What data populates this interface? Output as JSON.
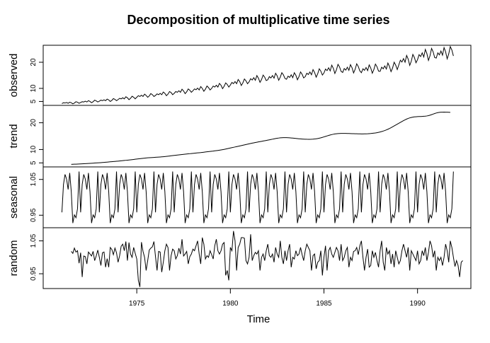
{
  "chart_data": {
    "type": "line",
    "title": "Decomposition of multiplicative time series",
    "xlabel": "Time",
    "x_ticks": [
      1975,
      1980,
      1985,
      1990
    ],
    "xlim": [
      1970.0,
      1992.85
    ],
    "start": 1971.0,
    "frequency": 12,
    "line_color": "#000000",
    "grid": false,
    "panels": [
      {
        "name": "observed",
        "ylabel": "observed",
        "ylim": [
          3.5,
          26.5
        ],
        "y_ticks": [
          5,
          10,
          20
        ],
        "values": [
          4.2,
          4.5,
          4.4,
          4.6,
          4.3,
          4.7,
          4.5,
          4.1,
          4.4,
          4.9,
          4.7,
          4.3,
          4.6,
          4.9,
          4.8,
          5.1,
          4.8,
          5.3,
          5.0,
          4.5,
          4.9,
          5.5,
          5.2,
          4.8,
          5.1,
          5.5,
          5.3,
          5.6,
          5.3,
          5.9,
          5.6,
          5.0,
          5.4,
          6.1,
          5.8,
          5.3,
          5.7,
          6.2,
          6.0,
          6.4,
          6.0,
          6.8,
          6.4,
          5.7,
          6.2,
          7.0,
          6.6,
          6.0,
          6.6,
          7.2,
          6.9,
          7.4,
          6.9,
          7.8,
          7.3,
          6.6,
          7.1,
          8.0,
          7.6,
          6.9,
          7.3,
          7.9,
          7.6,
          8.1,
          7.6,
          8.6,
          8.1,
          7.2,
          7.8,
          8.8,
          8.4,
          7.6,
          8.1,
          8.8,
          8.5,
          9.1,
          8.5,
          9.7,
          9.0,
          8.0,
          8.7,
          9.8,
          9.3,
          8.5,
          9.1,
          9.8,
          9.5,
          10.1,
          9.4,
          10.7,
          10.0,
          8.9,
          9.7,
          10.9,
          10.3,
          9.4,
          10.0,
          10.9,
          10.5,
          11.2,
          10.5,
          11.9,
          11.2,
          9.9,
          10.8,
          12.1,
          11.5,
          10.5,
          11.3,
          12.3,
          11.8,
          12.6,
          11.8,
          13.4,
          12.6,
          11.1,
          12.1,
          13.6,
          12.9,
          11.8,
          12.5,
          13.7,
          13.2,
          14.1,
          13.1,
          14.9,
          13.9,
          12.3,
          13.4,
          15.1,
          14.3,
          13.0,
          13.3,
          14.5,
          14.0,
          14.9,
          13.9,
          15.8,
          14.8,
          13.1,
          14.3,
          16.0,
          15.2,
          13.8,
          13.5,
          14.7,
          14.2,
          15.2,
          14.1,
          16.0,
          15.0,
          13.3,
          14.5,
          16.3,
          15.4,
          14.0,
          14.5,
          15.8,
          15.3,
          16.3,
          15.2,
          17.2,
          16.1,
          14.3,
          15.6,
          17.5,
          16.6,
          15.1,
          15.9,
          17.4,
          16.8,
          17.9,
          16.7,
          18.9,
          17.7,
          15.7,
          17.1,
          19.2,
          18.2,
          16.5,
          16.1,
          17.6,
          17.0,
          18.1,
          16.9,
          19.1,
          17.9,
          15.9,
          17.3,
          19.4,
          18.4,
          16.7,
          16.0,
          17.5,
          16.9,
          18.0,
          16.8,
          19.0,
          17.8,
          15.8,
          17.2,
          19.3,
          18.3,
          16.6,
          16.5,
          18.1,
          17.5,
          18.6,
          17.4,
          19.7,
          18.4,
          16.4,
          17.8,
          20.0,
          18.9,
          17.2,
          19.0,
          20.8,
          20.1,
          21.4,
          20.0,
          22.6,
          21.2,
          18.8,
          20.4,
          23.0,
          21.8,
          19.8,
          21.0,
          22.9,
          22.2,
          23.6,
          22.0,
          24.9,
          23.3,
          20.7,
          22.5,
          25.3,
          24.0,
          21.8,
          21.6,
          23.6,
          22.8,
          24.3,
          22.7,
          25.6,
          24.0,
          21.3,
          23.2,
          26.0,
          24.7,
          22.4
        ]
      },
      {
        "name": "trend",
        "ylabel": "trend",
        "ylim": [
          3.5,
          26.5
        ],
        "y_ticks": [
          5,
          10,
          20
        ],
        "values": [
          null,
          null,
          null,
          null,
          null,
          null,
          4.45,
          4.48,
          4.51,
          4.54,
          4.57,
          4.6,
          4.63,
          4.66,
          4.69,
          4.72,
          4.75,
          4.78,
          4.82,
          4.86,
          4.9,
          4.94,
          4.98,
          5.02,
          5.06,
          5.1,
          5.15,
          5.2,
          5.25,
          5.3,
          5.35,
          5.4,
          5.45,
          5.5,
          5.55,
          5.6,
          5.66,
          5.72,
          5.78,
          5.84,
          5.9,
          5.96,
          6.02,
          6.08,
          6.15,
          6.22,
          6.29,
          6.36,
          6.43,
          6.5,
          6.57,
          6.64,
          6.71,
          6.78,
          6.84,
          6.89,
          6.93,
          6.97,
          7.01,
          7.05,
          7.09,
          7.13,
          7.17,
          7.21,
          7.26,
          7.31,
          7.37,
          7.44,
          7.51,
          7.58,
          7.65,
          7.72,
          7.79,
          7.86,
          7.93,
          8.0,
          8.07,
          8.14,
          8.2,
          8.26,
          8.32,
          8.38,
          8.44,
          8.5,
          8.56,
          8.62,
          8.68,
          8.74,
          8.8,
          8.86,
          8.93,
          9.0,
          9.07,
          9.14,
          9.21,
          9.28,
          9.35,
          9.42,
          9.5,
          9.58,
          9.66,
          9.75,
          9.84,
          9.94,
          10.05,
          10.17,
          10.3,
          10.43,
          10.56,
          10.69,
          10.82,
          10.95,
          11.08,
          11.21,
          11.34,
          11.47,
          11.6,
          11.73,
          11.86,
          11.99,
          12.12,
          12.25,
          12.38,
          12.5,
          12.62,
          12.73,
          12.84,
          12.95,
          13.06,
          13.17,
          13.28,
          13.39,
          13.5,
          13.62,
          13.74,
          13.86,
          13.98,
          14.1,
          14.2,
          14.29,
          14.36,
          14.41,
          14.44,
          14.45,
          14.44,
          14.41,
          14.37,
          14.32,
          14.26,
          14.2,
          14.14,
          14.08,
          14.02,
          13.97,
          13.92,
          13.88,
          13.85,
          13.83,
          13.82,
          13.82,
          13.84,
          13.88,
          13.94,
          14.02,
          14.12,
          14.24,
          14.38,
          14.54,
          14.72,
          14.9,
          15.08,
          15.26,
          15.43,
          15.58,
          15.71,
          15.82,
          15.9,
          15.96,
          16.0,
          16.02,
          16.03,
          16.03,
          16.02,
          16.0,
          15.98,
          15.96,
          15.94,
          15.92,
          15.9,
          15.88,
          15.86,
          15.85,
          15.84,
          15.84,
          15.85,
          15.87,
          15.9,
          15.94,
          15.99,
          16.05,
          16.12,
          16.2,
          16.3,
          16.42,
          16.56,
          16.72,
          16.9,
          17.1,
          17.33,
          17.58,
          17.86,
          18.16,
          18.48,
          18.81,
          19.14,
          19.47,
          19.8,
          20.13,
          20.46,
          20.79,
          21.1,
          21.38,
          21.62,
          21.82,
          21.98,
          22.1,
          22.19,
          22.25,
          22.29,
          22.32,
          22.35,
          22.38,
          22.42,
          22.47,
          22.55,
          22.67,
          22.83,
          23.03,
          23.25,
          23.46,
          23.64,
          23.78,
          23.88,
          23.94,
          23.97,
          23.98,
          23.97,
          23.95,
          23.92,
          23.9,
          null,
          null,
          null,
          null,
          null,
          null
        ]
      },
      {
        "name": "seasonal",
        "ylabel": "seasonal",
        "ylim": [
          0.915,
          1.085
        ],
        "y_ticks": [
          0.95,
          1.05
        ],
        "pattern": [
          0.958,
          1.036,
          1.064,
          1.051,
          1.022,
          1.068,
          1.016,
          0.928,
          0.951,
          0.943,
          0.968,
          1.072
        ]
      },
      {
        "name": "random",
        "ylabel": "random",
        "ylim": [
          0.905,
          1.09
        ],
        "y_ticks": [
          0.95,
          1.05
        ],
        "values": [
          null,
          null,
          null,
          null,
          null,
          null,
          1.018,
          1.012,
          1.028,
          1.016,
          1.02,
          0.982,
          1.014,
          0.94,
          1.004,
          1.002,
          0.98,
          1.016,
          1.01,
          1.004,
          1.018,
          0.99,
          1.004,
          1.022,
          1.0,
          0.975,
          1.014,
          1.016,
          0.97,
          0.996,
          0.97,
          1.03,
          1.024,
          1.008,
          1.028,
          1.014,
          0.985,
          1.005,
          1.034,
          1.04,
          1.02,
          1.048,
          0.99,
          1.045,
          1.01,
          1.0,
          1.03,
          1.012,
          0.995,
          0.93,
          0.91,
          1.046,
          1.018,
          1.0,
          0.96,
          0.99,
          1.022,
          1.028,
          1.032,
          1.048,
          1.002,
          0.96,
          1.018,
          1.016,
          0.955,
          0.985,
          1.02,
          1.04,
          1.03,
          0.96,
          1.005,
          1.025,
          1.02,
          0.995,
          1.005,
          1.028,
          1.01,
          1.055,
          1.004,
          1.01,
          1.018,
          0.98,
          1.002,
          1.01,
          1.025,
          1.02,
          1.035,
          1.05,
          1.01,
          0.98,
          1.06,
          1.04,
          0.995,
          1.005,
          1.0,
          1.02,
          1.008,
          0.995,
          1.035,
          1.055,
          1.02,
          1.01,
          1.02,
          1.04,
          1.045,
          0.945,
          0.96,
          0.93,
          1.03,
          1.02,
          1.08,
          1.05,
          0.96,
          1.03,
          1.04,
          1.06,
          1.06,
          1.058,
          0.99,
          0.98,
          1.0,
          1.07,
          0.99,
          1.005,
          1.015,
          1.01,
          1.02,
          0.96,
          1.0,
          1.01,
          0.99,
          1.02,
          1.04,
          1.005,
          1.0,
          1.01,
          0.985,
          1.03,
          1.01,
          1.0,
          1.05,
          1.0,
          0.98,
          1.02,
          0.99,
          1.02,
          1.04,
          0.97,
          1.0,
          0.995,
          1.02,
          1.005,
          1.01,
          1.03,
          1.008,
          0.99,
          1.02,
          1.04,
          1.03,
          1.02,
          0.96,
          1.005,
          1.01,
          0.965,
          0.985,
          0.99,
          1.02,
          0.945,
          1.0,
          1.035,
          0.96,
          1.02,
          1.03,
          1.01,
          1.0,
          1.015,
          1.03,
          1.02,
          0.99,
          1.04,
          0.99,
          1.0,
          1.02,
          1.03,
          0.97,
          1.0,
          0.99,
          1.018,
          1.02,
          1.03,
          1.008,
          1.035,
          1.05,
          1.0,
          0.96,
          1.0,
          1.025,
          0.97,
          0.975,
          1.02,
          1.0,
          1.015,
          0.99,
          0.97,
          1.02,
          1.05,
          0.985,
          0.96,
          1.03,
          1.01,
          1.02,
          0.98,
          1.01,
          0.97,
          1.02,
          1.0,
          0.98,
          0.99,
          1.02,
          1.04,
          1.02,
          1.0,
          1.03,
          0.96,
          1.02,
          1.01,
          1.0,
          0.99,
          1.02,
          0.98,
          0.99,
          1.02,
          1.005,
          1.03,
          0.99,
          1.015,
          1.05,
          1.035,
          1.0,
          1.02,
          0.96,
          1.0,
          0.99,
          1.0,
          0.975,
          1.0,
          1.04,
          1.02,
          0.985,
          1.05,
          1.03,
          1.0,
          0.972,
          0.99,
          0.975,
          0.94,
          0.985,
          0.99,
          null,
          null,
          null,
          null,
          null,
          null
        ]
      }
    ]
  }
}
